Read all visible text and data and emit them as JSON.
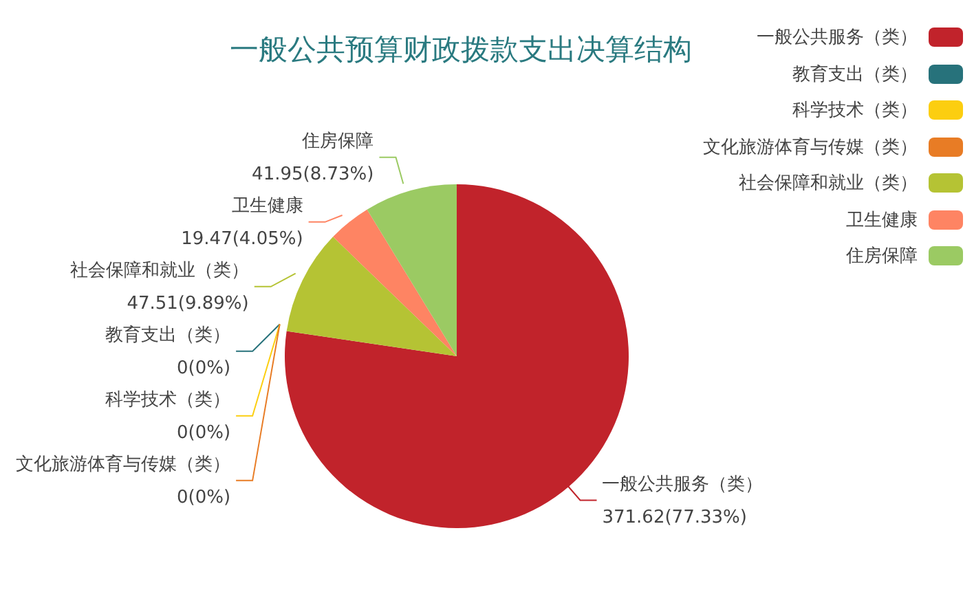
{
  "chart_data": {
    "type": "pie",
    "title": "一般公共预算财政拨款支出决算结构",
    "categories": [
      "一般公共服务（类）",
      "教育支出（类）",
      "科学技术（类）",
      "文化旅游体育与传媒（类）",
      "社会保障和就业（类）",
      "卫生健康",
      "住房保障"
    ],
    "values": [
      371.62,
      0,
      0,
      0,
      47.51,
      19.47,
      41.95
    ],
    "value_labels": [
      "371.62(77.33%)",
      "0(0%)",
      "0(0%)",
      "0(0%)",
      "47.51(9.89%)",
      "19.47(4.05%)",
      "41.95(8.73%)"
    ],
    "colors": [
      "#c1232b",
      "#27727b",
      "#fcce10",
      "#e87c25",
      "#b5c334",
      "#fe8463",
      "#9bca63"
    ],
    "legend": "top right"
  }
}
